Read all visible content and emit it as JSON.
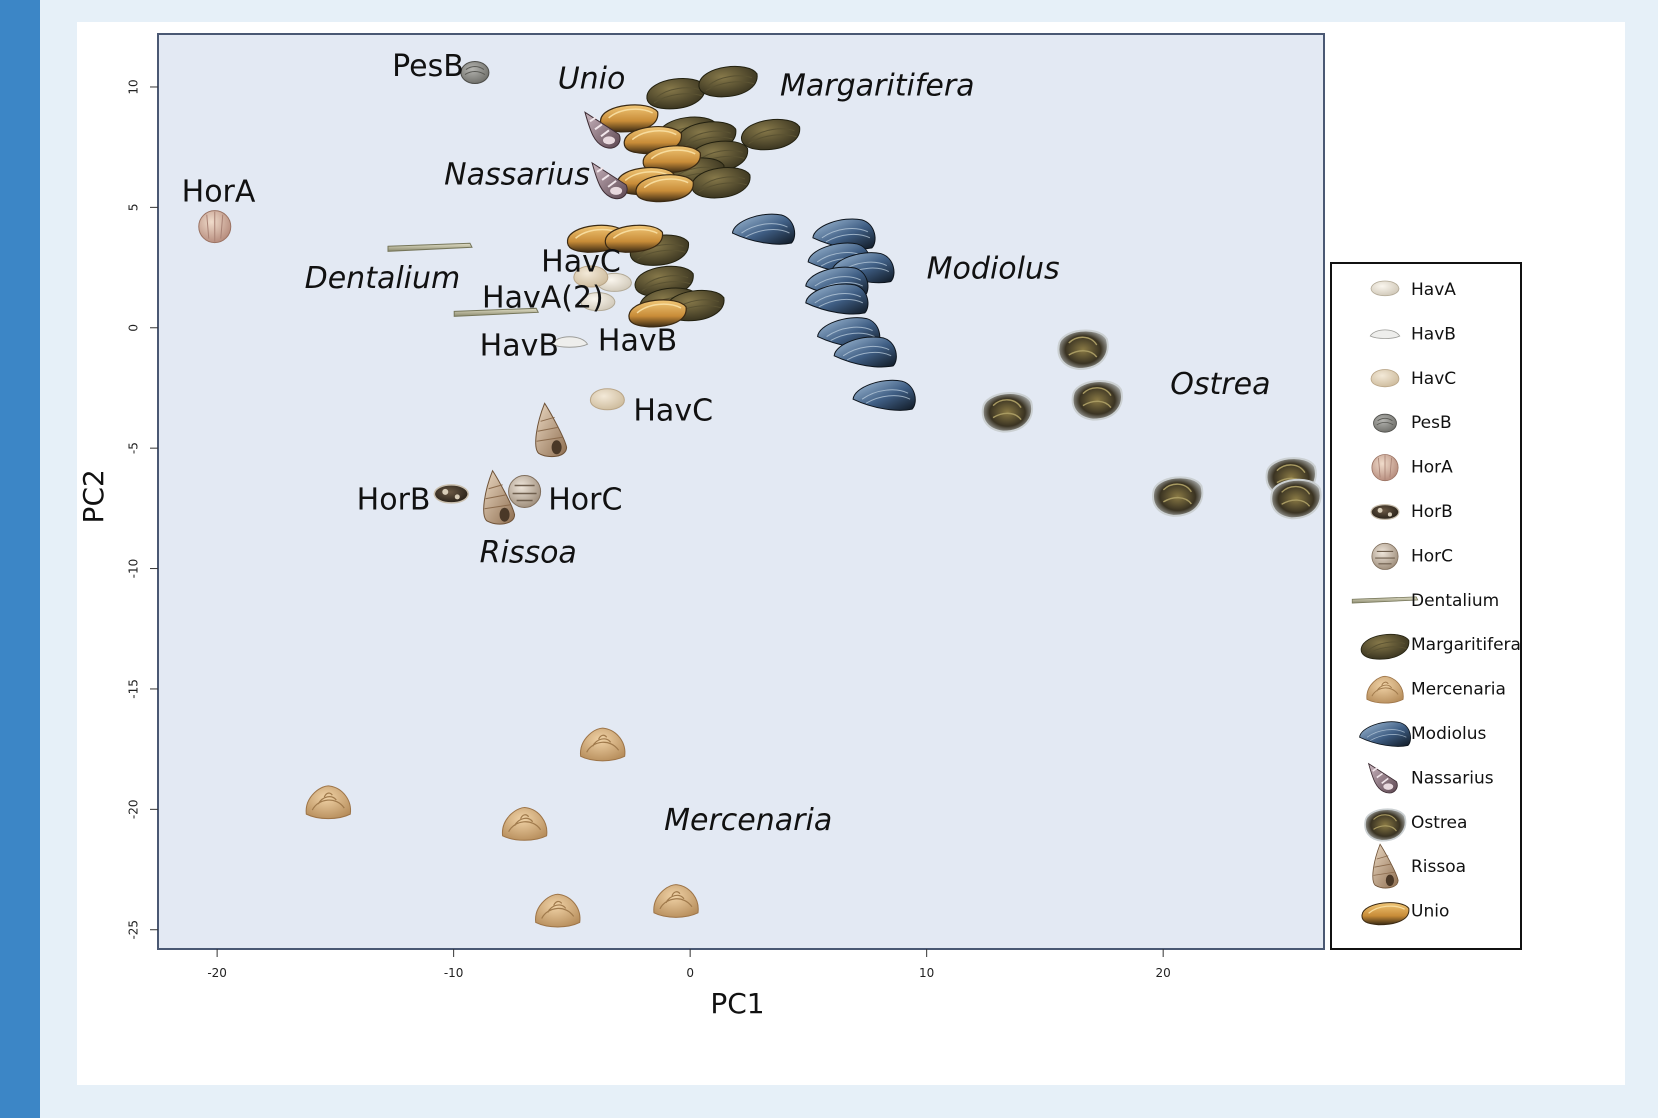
{
  "colors": {
    "plot_bg": "#e3e9f3",
    "frame": "#4a5873",
    "left_bar": "#3c86c6",
    "page_bg": "#e6f0f8"
  },
  "chart_data": {
    "type": "scatter",
    "title": "",
    "xlabel": "PC1",
    "ylabel": "PC2",
    "xlim": [
      -22.5,
      26.8
    ],
    "ylim": [
      -25.8,
      12.2
    ],
    "xticks": [
      -20,
      -10,
      0,
      10,
      20
    ],
    "yticks": [
      10,
      5,
      0,
      -5,
      -10,
      -15,
      -20,
      -25
    ],
    "grid": false,
    "legend_position": "right",
    "legend": [
      "HavA",
      "HavB",
      "HavC",
      "PesB",
      "HorA",
      "HorB",
      "HorC",
      "Dentalium",
      "Margaritifera",
      "Mercenaria",
      "Modiolus",
      "Nassarius",
      "Ostrea",
      "Rissoa",
      "Unio"
    ],
    "series": [
      {
        "name": "HavA",
        "icon": "hava-shell-icon",
        "points": [
          [
            -3.2,
            1.8
          ],
          [
            -3.9,
            1.0
          ]
        ]
      },
      {
        "name": "HavB",
        "icon": "havb-shell-icon",
        "points": [
          [
            -5.1,
            -0.6
          ]
        ]
      },
      {
        "name": "HavC",
        "icon": "havc-shell-icon",
        "points": [
          [
            -3.5,
            -3.0
          ],
          [
            -4.2,
            2.1
          ]
        ]
      },
      {
        "name": "PesB",
        "icon": "pesb-shell-icon",
        "points": [
          [
            -9.1,
            10.6
          ]
        ]
      },
      {
        "name": "HorA",
        "icon": "hora-shell-icon",
        "points": [
          [
            -20.1,
            4.2
          ]
        ]
      },
      {
        "name": "HorB",
        "icon": "horb-shell-icon",
        "points": [
          [
            -10.1,
            -6.9
          ]
        ]
      },
      {
        "name": "HorC",
        "icon": "horc-shell-icon",
        "points": [
          [
            -7.0,
            -6.8
          ]
        ]
      },
      {
        "name": "Dentalium",
        "icon": "dentalium-shell-icon",
        "points": [
          [
            -11.0,
            3.3
          ],
          [
            -8.2,
            0.6
          ]
        ]
      },
      {
        "name": "Margaritifera",
        "icon": "margaritifera-shell-icon",
        "points": [
          [
            -0.6,
            9.8
          ],
          [
            1.6,
            10.3
          ],
          [
            -0.1,
            8.2
          ],
          [
            0.7,
            8.0
          ],
          [
            3.4,
            8.1
          ],
          [
            1.2,
            7.2
          ],
          [
            0.2,
            6.5
          ],
          [
            1.3,
            6.1
          ],
          [
            -1.3,
            3.3
          ],
          [
            -1.1,
            2.0
          ],
          [
            -0.9,
            1.1
          ],
          [
            0.2,
            1.0
          ]
        ]
      },
      {
        "name": "Mercenaria",
        "icon": "mercenaria-shell-icon",
        "points": [
          [
            -3.7,
            -17.3
          ],
          [
            -15.3,
            -19.7
          ],
          [
            -7.0,
            -20.6
          ],
          [
            -5.6,
            -24.2
          ],
          [
            -0.6,
            -23.8
          ]
        ]
      },
      {
        "name": "Modiolus",
        "icon": "modiolus-shell-icon",
        "points": [
          [
            3.1,
            4.1
          ],
          [
            6.5,
            3.9
          ],
          [
            6.3,
            2.9
          ],
          [
            7.3,
            2.5
          ],
          [
            6.2,
            1.9
          ],
          [
            6.2,
            1.2
          ],
          [
            6.7,
            -0.2
          ],
          [
            7.4,
            -1.0
          ],
          [
            8.2,
            -2.8
          ]
        ]
      },
      {
        "name": "Nassarius",
        "icon": "nassarius-shell-icon",
        "points": [
          [
            -3.6,
            8.2
          ],
          [
            -3.3,
            6.1
          ]
        ]
      },
      {
        "name": "Ostrea",
        "icon": "ostrea-shell-icon",
        "points": [
          [
            16.6,
            -0.8
          ],
          [
            17.2,
            -2.9
          ],
          [
            13.4,
            -3.4
          ],
          [
            25.4,
            -6.1
          ],
          [
            20.6,
            -6.9
          ],
          [
            25.6,
            -7.0
          ]
        ]
      },
      {
        "name": "Rissoa",
        "icon": "rissoa-shell-icon",
        "points": [
          [
            -5.9,
            -4.3
          ],
          [
            -8.1,
            -7.1
          ]
        ]
      },
      {
        "name": "Unio",
        "icon": "unio-shell-icon",
        "points": [
          [
            -2.6,
            8.8
          ],
          [
            -1.6,
            7.9
          ],
          [
            -0.8,
            7.1
          ],
          [
            -1.9,
            6.2
          ],
          [
            -1.1,
            5.9
          ],
          [
            -4.0,
            3.8
          ],
          [
            -2.4,
            3.8
          ],
          [
            -1.4,
            0.7
          ]
        ]
      }
    ],
    "annotations": [
      {
        "text": "PesB",
        "style": "plain",
        "x": -12.6,
        "y": 10.8
      },
      {
        "text": "Unio",
        "style": "italic",
        "x": -5.6,
        "y": 10.3
      },
      {
        "text": "Margaritifera",
        "style": "italic",
        "x": 3.8,
        "y": 10.0
      },
      {
        "text": "Nassarius",
        "style": "italic",
        "x": -10.4,
        "y": 6.3
      },
      {
        "text": "HorA",
        "style": "plain",
        "x": -21.5,
        "y": 5.6
      },
      {
        "text": "HavC",
        "style": "plain",
        "x": -6.3,
        "y": 2.7
      },
      {
        "text": "Modiolus",
        "style": "italic",
        "x": 10.0,
        "y": 2.4
      },
      {
        "text": "Dentalium",
        "style": "italic",
        "x": -16.3,
        "y": 2.0
      },
      {
        "text": "HavA(2)",
        "style": "plain",
        "x": -8.8,
        "y": 1.2
      },
      {
        "text": "HavB",
        "style": "plain",
        "x": -8.9,
        "y": -0.8
      },
      {
        "text": "HavB",
        "style": "plain",
        "x": -3.9,
        "y": -0.6
      },
      {
        "text": "Ostrea",
        "style": "italic",
        "x": 20.3,
        "y": -2.4
      },
      {
        "text": "HavC",
        "style": "plain",
        "x": -2.4,
        "y": -3.5
      },
      {
        "text": "HorB",
        "style": "plain",
        "x": -14.1,
        "y": -7.2
      },
      {
        "text": "HorC",
        "style": "plain",
        "x": -6.0,
        "y": -7.2
      },
      {
        "text": "Rissoa",
        "style": "italic",
        "x": -8.9,
        "y": -9.4
      },
      {
        "text": "Mercenaria",
        "style": "italic",
        "x": -1.1,
        "y": -20.5
      }
    ]
  }
}
